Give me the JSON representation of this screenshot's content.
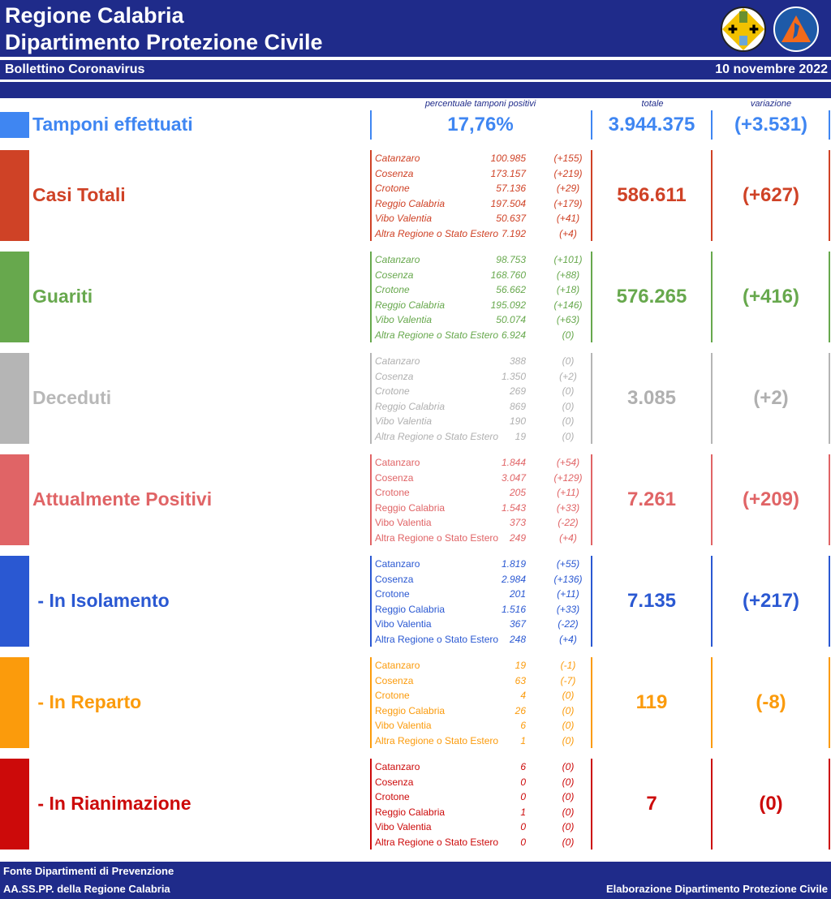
{
  "header": {
    "line1": "Regione Calabria",
    "line2": "Dipartimento Protezione Civile",
    "subtitle": "Bollettino Coronavirus",
    "date": "10 novembre 2022",
    "logos": [
      "Regione Calabria coat of arms",
      "Protezione Civile Regione Calabria"
    ]
  },
  "columns": {
    "percent": "percentuale tamponi positivi",
    "total": "totale",
    "variation": "variazione"
  },
  "tamponi": {
    "label": "Tamponi effettuati",
    "percent": "17,76%",
    "total": "3.944.375",
    "variation": "(+3.531)",
    "color": "#3f86f2"
  },
  "sections": [
    {
      "label": "Casi Totali",
      "total": "586.611",
      "variation": "(+627)",
      "color": "#cf4226",
      "italic_names": true,
      "rows": [
        [
          "Catanzaro",
          "100.985",
          "(+155)"
        ],
        [
          "Cosenza",
          "173.157",
          "(+219)"
        ],
        [
          "Crotone",
          "57.136",
          "(+29)"
        ],
        [
          "Reggio Calabria",
          "197.504",
          "(+179)"
        ],
        [
          "Vibo Valentia",
          "50.637",
          "(+41)"
        ],
        [
          "Altra Regione o Stato Estero",
          "7.192",
          "(+4)"
        ]
      ]
    },
    {
      "label": "Guariti",
      "total": "576.265",
      "variation": "(+416)",
      "color": "#67a84d",
      "italic_names": true,
      "rows": [
        [
          "Catanzaro",
          "98.753",
          "(+101)"
        ],
        [
          "Cosenza",
          "168.760",
          "(+88)"
        ],
        [
          "Crotone",
          "56.662",
          "(+18)"
        ],
        [
          "Reggio Calabria",
          "195.092",
          "(+146)"
        ],
        [
          "Vibo Valentia",
          "50.074",
          "(+63)"
        ],
        [
          "Altra Regione o Stato Estero",
          "6.924",
          "(0)"
        ]
      ]
    },
    {
      "label": "Deceduti",
      "total": "3.085",
      "variation": "(+2)",
      "color": "#b5b5b5",
      "italic_names": true,
      "rows": [
        [
          "Catanzaro",
          "388",
          "(0)"
        ],
        [
          "Cosenza",
          "1.350",
          "(+2)"
        ],
        [
          "Crotone",
          "269",
          "(0)"
        ],
        [
          "Reggio Calabria",
          "869",
          "(0)"
        ],
        [
          "Vibo Valentia",
          "190",
          "(0)"
        ],
        [
          "Altra Regione o Stato Estero",
          "19",
          "(0)"
        ]
      ]
    },
    {
      "label": "Attualmente Positivi",
      "total": "7.261",
      "variation": "(+209)",
      "color": "#e06466",
      "italic_names": false,
      "rows": [
        [
          "Catanzaro",
          "1.844",
          "(+54)"
        ],
        [
          "Cosenza",
          "3.047",
          "(+129)"
        ],
        [
          "Crotone",
          "205",
          "(+11)"
        ],
        [
          "Reggio Calabria",
          "1.543",
          "(+33)"
        ],
        [
          "Vibo Valentia",
          "373",
          "(-22)"
        ],
        [
          "Altra Regione o Stato Estero",
          "249",
          "(+4)"
        ]
      ]
    },
    {
      "label": " - In Isolamento",
      "total": "7.135",
      "variation": "(+217)",
      "color": "#2a58d2",
      "italic_names": false,
      "rows": [
        [
          "Catanzaro",
          "1.819",
          "(+55)"
        ],
        [
          "Cosenza",
          "2.984",
          "(+136)"
        ],
        [
          "Crotone",
          "201",
          "(+11)"
        ],
        [
          "Reggio Calabria",
          "1.516",
          "(+33)"
        ],
        [
          "Vibo Valentia",
          "367",
          "(-22)"
        ],
        [
          "Altra Regione o Stato Estero",
          "248",
          "(+4)"
        ]
      ]
    },
    {
      "label": " - In Reparto",
      "total": "119",
      "variation": "(-8)",
      "color": "#fb9b0c",
      "italic_names": false,
      "rows": [
        [
          "Catanzaro",
          "19",
          "(-1)"
        ],
        [
          "Cosenza",
          "63",
          "(-7)"
        ],
        [
          "Crotone",
          "4",
          "(0)"
        ],
        [
          "Reggio Calabria",
          "26",
          "(0)"
        ],
        [
          "Vibo Valentia",
          "6",
          "(0)"
        ],
        [
          "Altra Regione o Stato Estero",
          "1",
          "(0)"
        ]
      ]
    },
    {
      "label": " - In Rianimazione",
      "total": "7",
      "variation": "(0)",
      "color": "#cc0a0a",
      "italic_names": false,
      "rows": [
        [
          "Catanzaro",
          "6",
          "(0)"
        ],
        [
          "Cosenza",
          "0",
          "(0)"
        ],
        [
          "Crotone",
          "0",
          "(0)"
        ],
        [
          "Reggio Calabria",
          "1",
          "(0)"
        ],
        [
          "Vibo Valentia",
          "0",
          "(0)"
        ],
        [
          "Altra Regione o Stato Estero",
          "0",
          "(0)"
        ]
      ]
    }
  ],
  "footer": {
    "line1": "Fonte Dipartimenti di Prevenzione",
    "line2": "AA.SS.PP.  della Regione Calabria",
    "credit": "Elaborazione Dipartimento Protezione Civile"
  }
}
